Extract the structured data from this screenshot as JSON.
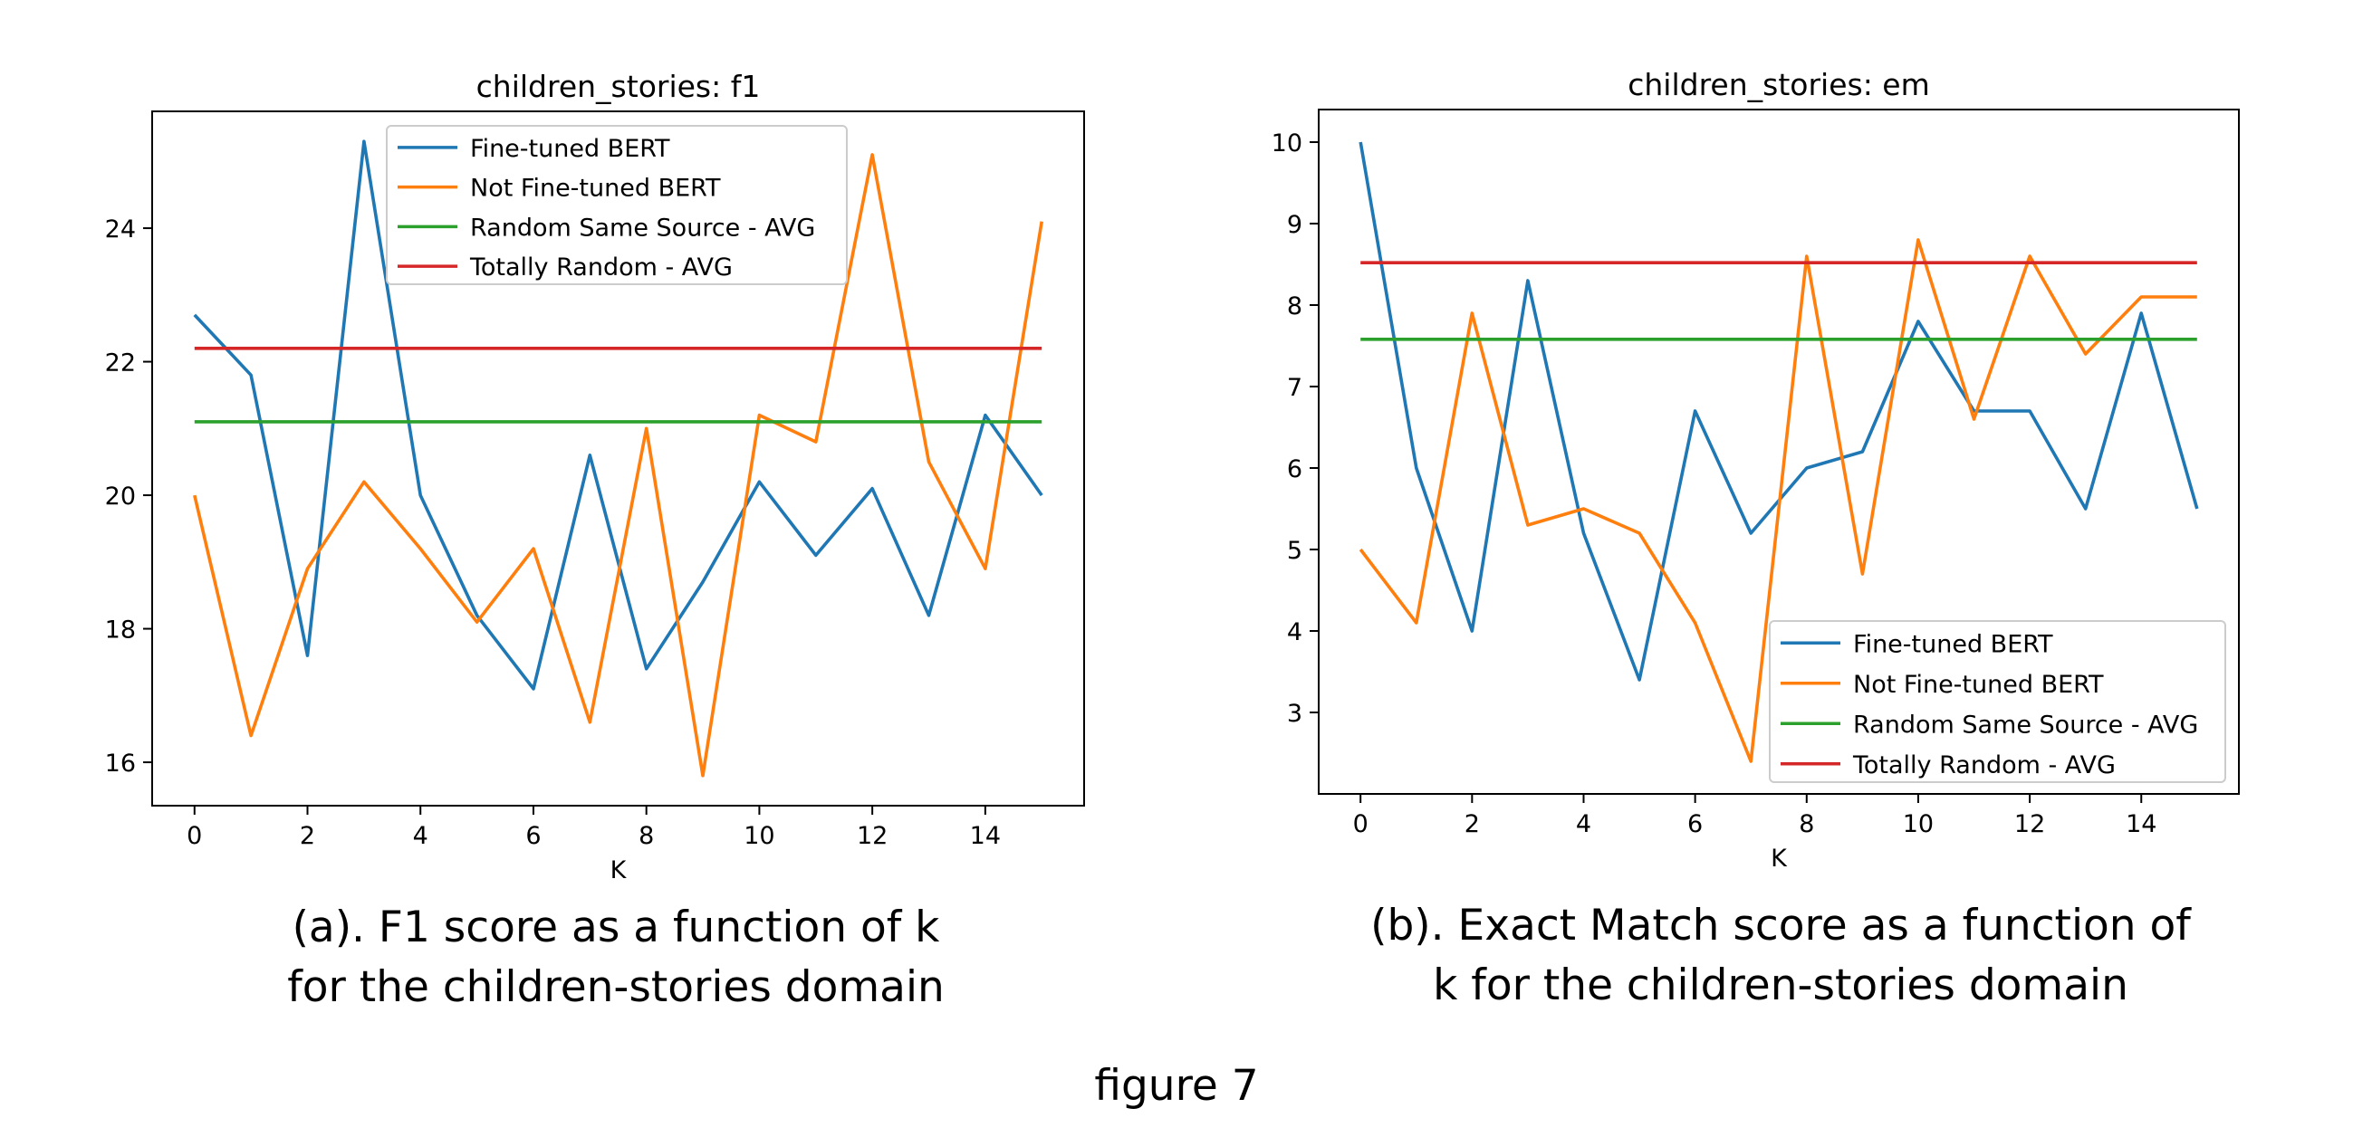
{
  "chart_data": [
    {
      "type": "line",
      "title": "children_stories: f1",
      "xlabel": "K",
      "ylabel": "",
      "xlim": [
        -0.75,
        15.75
      ],
      "ylim": [
        15.35,
        25.75
      ],
      "xticks": [
        0,
        2,
        4,
        6,
        8,
        10,
        12,
        14
      ],
      "yticks": [
        16,
        18,
        20,
        22,
        24
      ],
      "grid": false,
      "legend_position": "top-center",
      "x": [
        0,
        1,
        2,
        3,
        4,
        5,
        6,
        7,
        8,
        9,
        10,
        11,
        12,
        13,
        14,
        15
      ],
      "series": [
        {
          "name": "Fine-tuned BERT",
          "color": "#1f77b4",
          "values": [
            22.7,
            21.8,
            17.6,
            25.3,
            20.0,
            18.2,
            17.1,
            20.6,
            17.4,
            18.7,
            20.2,
            19.1,
            20.1,
            18.2,
            21.2,
            20.0
          ]
        },
        {
          "name": "Not Fine-tuned BERT",
          "color": "#ff7f0e",
          "values": [
            20.0,
            16.4,
            18.9,
            20.2,
            19.2,
            18.1,
            19.2,
            16.6,
            21.0,
            15.8,
            21.2,
            20.8,
            25.1,
            20.5,
            18.9,
            24.1
          ]
        },
        {
          "name": "Random Same Source - AVG",
          "color": "#2ca02c",
          "values": [
            21.1,
            21.1,
            21.1,
            21.1,
            21.1,
            21.1,
            21.1,
            21.1,
            21.1,
            21.1,
            21.1,
            21.1,
            21.1,
            21.1,
            21.1,
            21.1
          ]
        },
        {
          "name": "Totally Random - AVG",
          "color": "#d62728",
          "values": [
            22.2,
            22.2,
            22.2,
            22.2,
            22.2,
            22.2,
            22.2,
            22.2,
            22.2,
            22.2,
            22.2,
            22.2,
            22.2,
            22.2,
            22.2,
            22.2
          ]
        }
      ]
    },
    {
      "type": "line",
      "title": "children_stories: em",
      "xlabel": "K",
      "ylabel": "",
      "xlim": [
        -0.75,
        15.75
      ],
      "ylim": [
        2.0,
        10.4
      ],
      "xticks": [
        0,
        2,
        4,
        6,
        8,
        10,
        12,
        14
      ],
      "yticks": [
        3,
        4,
        5,
        6,
        7,
        8,
        9,
        10
      ],
      "grid": false,
      "legend_position": "lower-right",
      "x": [
        0,
        1,
        2,
        3,
        4,
        5,
        6,
        7,
        8,
        9,
        10,
        11,
        12,
        13,
        14,
        15
      ],
      "series": [
        {
          "name": "Fine-tuned BERT",
          "color": "#1f77b4",
          "values": [
            10.0,
            6.0,
            4.0,
            8.3,
            5.2,
            3.4,
            6.7,
            5.2,
            6.0,
            6.2,
            7.8,
            6.7,
            6.7,
            5.5,
            7.9,
            5.5
          ]
        },
        {
          "name": "Not Fine-tuned BERT",
          "color": "#ff7f0e",
          "values": [
            5.0,
            4.1,
            7.9,
            5.3,
            5.5,
            5.2,
            4.1,
            2.4,
            8.6,
            4.7,
            8.8,
            6.6,
            8.6,
            7.4,
            8.1,
            8.1
          ]
        },
        {
          "name": "Random Same Source - AVG",
          "color": "#2ca02c",
          "values": [
            7.58,
            7.58,
            7.58,
            7.58,
            7.58,
            7.58,
            7.58,
            7.58,
            7.58,
            7.58,
            7.58,
            7.58,
            7.58,
            7.58,
            7.58,
            7.58
          ]
        },
        {
          "name": "Totally Random - AVG",
          "color": "#d62728",
          "values": [
            8.52,
            8.52,
            8.52,
            8.52,
            8.52,
            8.52,
            8.52,
            8.52,
            8.52,
            8.52,
            8.52,
            8.52,
            8.52,
            8.52,
            8.52,
            8.52
          ]
        }
      ]
    }
  ],
  "captions": {
    "a": {
      "line1": "(a). F1 score as a function of k",
      "line2": "for the children-stories domain"
    },
    "b": {
      "line1": "(b). Exact Match score as a function of",
      "line2": "k for the children-stories domain"
    }
  },
  "figure_label": "figure 7"
}
